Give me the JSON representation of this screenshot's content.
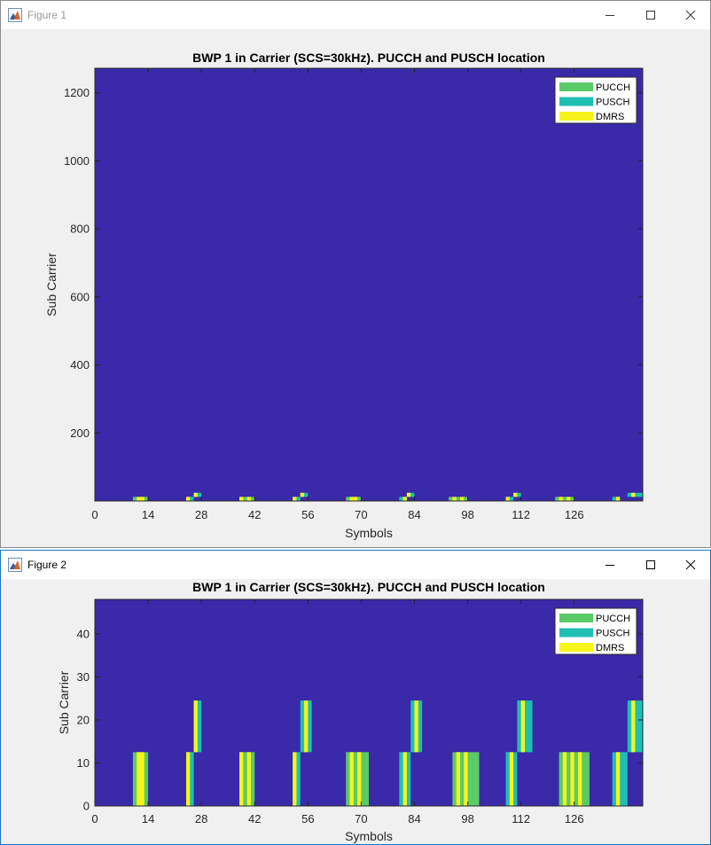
{
  "windows": [
    {
      "title": "Figure 1",
      "icon": "matlab-figure-icon",
      "controls": [
        "minimize-icon",
        "maximize-icon",
        "close-icon"
      ]
    },
    {
      "title": "Figure 2",
      "icon": "matlab-figure-icon",
      "controls": [
        "minimize-icon",
        "maximize-icon",
        "close-icon"
      ]
    }
  ],
  "colors": {
    "background": "#3a29a8",
    "pucch": "#5bcb68",
    "pusch": "#1fbfb4",
    "dmrs": "#f7f41b"
  },
  "chart_data": [
    {
      "type": "heatmap",
      "title": "BWP 1 in Carrier (SCS=30kHz). PUCCH and PUSCH location",
      "xlabel": "Symbols",
      "ylabel": "Sub Carrier",
      "xlim": [
        0,
        144
      ],
      "ylim": [
        0,
        1272
      ],
      "xticks": [
        0,
        14,
        28,
        42,
        56,
        70,
        84,
        98,
        112,
        126
      ],
      "yticks": [
        200,
        400,
        600,
        800,
        1000,
        1200
      ],
      "grid": false,
      "legend_position": "top-right",
      "legend": [
        "PUCCH",
        "PUSCH",
        "DMRS"
      ],
      "allocations": [
        {
          "type": "PUCCH",
          "x0": 10,
          "x1": 14,
          "y0": 0,
          "y1": 12,
          "dmrs": [
            11,
            12
          ]
        },
        {
          "type": "PUSCH",
          "x0": 24,
          "x1": 26,
          "y0": 0,
          "y1": 12,
          "dmrs": [
            24
          ]
        },
        {
          "type": "PUSCH",
          "x0": 26,
          "x1": 28,
          "y0": 12,
          "y1": 24,
          "dmrs": [
            26
          ]
        },
        {
          "type": "PUCCH",
          "x0": 38,
          "x1": 42,
          "y0": 0,
          "y1": 12,
          "dmrs": [
            38,
            40
          ]
        },
        {
          "type": "PUSCH",
          "x0": 52,
          "x1": 54,
          "y0": 0,
          "y1": 12,
          "dmrs": [
            52
          ]
        },
        {
          "type": "PUSCH",
          "x0": 54,
          "x1": 56,
          "y0": 12,
          "y1": 24,
          "dmrs": [
            54
          ]
        },
        {
          "type": "PUCCH",
          "x0": 66,
          "x1": 70,
          "y0": 0,
          "y1": 12,
          "dmrs": [
            67,
            68
          ]
        },
        {
          "type": "PUSCH",
          "x0": 80,
          "x1": 82,
          "y0": 0,
          "y1": 12,
          "dmrs": [
            81
          ]
        },
        {
          "type": "PUSCH",
          "x0": 82,
          "x1": 84,
          "y0": 12,
          "y1": 24,
          "dmrs": [
            82
          ]
        },
        {
          "type": "PUCCH",
          "x0": 93,
          "x1": 98,
          "y0": 0,
          "y1": 12,
          "dmrs": [
            94,
            96
          ]
        },
        {
          "type": "PUSCH",
          "x0": 108,
          "x1": 110,
          "y0": 0,
          "y1": 12,
          "dmrs": [
            108
          ]
        },
        {
          "type": "PUSCH",
          "x0": 110,
          "x1": 112,
          "y0": 12,
          "y1": 24,
          "dmrs": [
            110
          ]
        },
        {
          "type": "PUCCH",
          "x0": 121,
          "x1": 126,
          "y0": 0,
          "y1": 12,
          "dmrs": [
            122,
            124
          ]
        },
        {
          "type": "PUSCH",
          "x0": 136,
          "x1": 138,
          "y0": 0,
          "y1": 12,
          "dmrs": [
            137
          ]
        },
        {
          "type": "PUSCH",
          "x0": 140,
          "x1": 144,
          "y0": 12,
          "y1": 24,
          "dmrs": [
            141
          ]
        }
      ]
    },
    {
      "type": "heatmap",
      "title": "BWP 1 in Carrier (SCS=30kHz). PUCCH and PUSCH location",
      "xlabel": "Symbols",
      "ylabel": "Sub Carrier",
      "xlim": [
        0,
        144
      ],
      "ylim": [
        0,
        48
      ],
      "xticks": [
        0,
        14,
        28,
        42,
        56,
        70,
        84,
        98,
        112,
        126
      ],
      "yticks": [
        0,
        10,
        20,
        30,
        40
      ],
      "grid": false,
      "legend_position": "top-right",
      "legend": [
        "PUCCH",
        "PUSCH",
        "DMRS"
      ],
      "allocations": [
        {
          "type": "PUCCH",
          "x0": 10,
          "x1": 14,
          "y0": 0,
          "y1": 12.5,
          "dmrs": [
            11,
            12
          ]
        },
        {
          "type": "PUSCH",
          "x0": 24,
          "x1": 26,
          "y0": 0,
          "y1": 12.5,
          "dmrs": [
            24
          ]
        },
        {
          "type": "PUSCH",
          "x0": 26,
          "x1": 28,
          "y0": 12.5,
          "y1": 24.5,
          "dmrs": [
            26
          ]
        },
        {
          "type": "PUCCH",
          "x0": 38,
          "x1": 42,
          "y0": 0,
          "y1": 12.5,
          "dmrs": [
            38,
            40
          ]
        },
        {
          "type": "PUSCH",
          "x0": 52,
          "x1": 54,
          "y0": 0,
          "y1": 12.5,
          "dmrs": [
            52
          ]
        },
        {
          "type": "PUSCH",
          "x0": 54,
          "x1": 57,
          "y0": 12.5,
          "y1": 24.5,
          "dmrs": [
            55
          ]
        },
        {
          "type": "PUCCH",
          "x0": 66,
          "x1": 72,
          "y0": 0,
          "y1": 12.5,
          "dmrs": [
            67,
            69
          ]
        },
        {
          "type": "PUSCH",
          "x0": 80,
          "x1": 83,
          "y0": 0,
          "y1": 12.5,
          "dmrs": [
            81
          ]
        },
        {
          "type": "PUSCH",
          "x0": 83,
          "x1": 86,
          "y0": 12.5,
          "y1": 24.5,
          "dmrs": [
            84
          ]
        },
        {
          "type": "PUCCH",
          "x0": 94,
          "x1": 101,
          "y0": 0,
          "y1": 12.5,
          "dmrs": [
            95,
            97
          ]
        },
        {
          "type": "PUSCH",
          "x0": 108,
          "x1": 111,
          "y0": 0,
          "y1": 12.5,
          "dmrs": [
            109
          ]
        },
        {
          "type": "PUSCH",
          "x0": 111,
          "x1": 115,
          "y0": 12.5,
          "y1": 24.5,
          "dmrs": [
            112
          ]
        },
        {
          "type": "PUCCH",
          "x0": 122,
          "x1": 130,
          "y0": 0,
          "y1": 12.5,
          "dmrs": [
            123,
            125,
            127
          ]
        },
        {
          "type": "PUSCH",
          "x0": 136,
          "x1": 140,
          "y0": 0,
          "y1": 12.5,
          "dmrs": [
            137
          ]
        },
        {
          "type": "PUSCH",
          "x0": 140,
          "x1": 144,
          "y0": 12.5,
          "y1": 24.5,
          "dmrs": [
            141
          ]
        }
      ]
    }
  ]
}
